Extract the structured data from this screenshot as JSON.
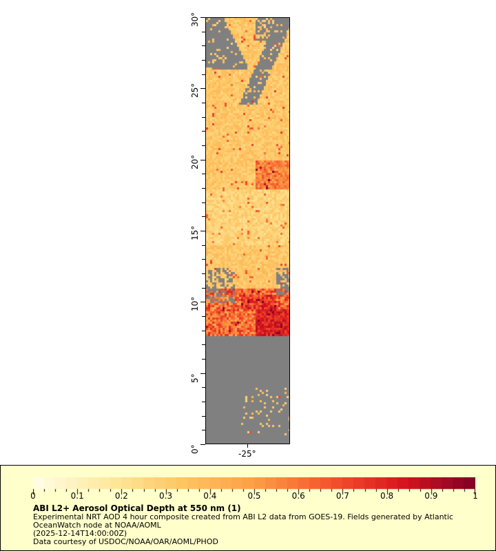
{
  "map": {
    "lat_range": [
      0,
      30
    ],
    "lon_center": -25,
    "y_ticks": [
      "0°",
      "5°",
      "10°",
      "15°",
      "20°",
      "25°",
      "30°"
    ],
    "y_tick_values": [
      0,
      5,
      10,
      15,
      20,
      25,
      30
    ],
    "x_ticks": [
      "-25°"
    ],
    "nodata_color": "#808080"
  },
  "legend": {
    "colorbar_ticks": [
      "0",
      "0.1",
      "0.2",
      "0.3",
      "0.4",
      "0.5",
      "0.6",
      "0.7",
      "0.8",
      "0.9",
      "1"
    ],
    "range": [
      0,
      1
    ],
    "colormap": [
      "#fffde8",
      "#feeaa0",
      "#fec664",
      "#fd9f46",
      "#f5562e",
      "#d8161f",
      "#800026"
    ],
    "title": "ABI L2+ Aerosol Optical Depth at 550 nm (1)",
    "line1": "Experimental NRT AOD 4 hour composite created from ABI L2 data from GOES-19. Fields generated by Atlantic",
    "line2": "OceanWatch node at NOAA/AOML",
    "line3": "(2025-12-14T14:00:00Z)",
    "line4": "Data courtesy of USDOC/NOAA/OAR/AOML/PHOD"
  }
}
